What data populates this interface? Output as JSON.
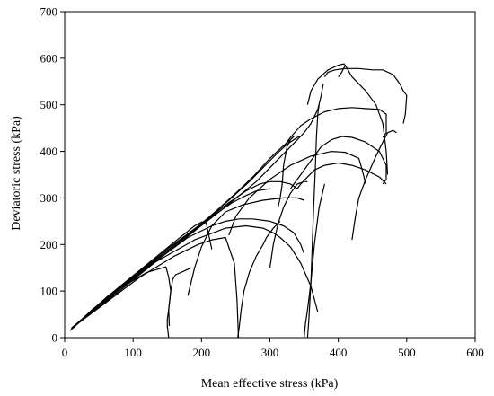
{
  "chart_data": {
    "type": "line",
    "title": "",
    "xlabel": "Mean effective stress (kPa)",
    "ylabel": "Deviatoric stress (kPa)",
    "xlim": [
      0,
      600
    ],
    "ylim": [
      0,
      700
    ],
    "xticks": [
      0,
      100,
      200,
      300,
      400,
      500,
      600
    ],
    "yticks": [
      0,
      100,
      200,
      300,
      400,
      500,
      600,
      700
    ],
    "grid": false,
    "legend": "none",
    "series": [
      {
        "x": [
          8,
          40,
          80,
          120,
          148,
          152,
          155,
          152,
          153
        ],
        "y": [
          15,
          60,
          105,
          140,
          152,
          130,
          100,
          60,
          25
        ]
      },
      {
        "x": [
          152,
          150,
          150,
          152,
          155,
          158,
          162,
          170,
          185
        ],
        "y": [
          0,
          25,
          40,
          60,
          100,
          125,
          135,
          140,
          150
        ]
      },
      {
        "x": [
          10,
          60,
          110,
          160,
          195,
          215,
          235,
          248,
          252,
          254
        ],
        "y": [
          20,
          75,
          130,
          175,
          200,
          210,
          215,
          160,
          80,
          0
        ]
      },
      {
        "x": [
          10,
          70,
          130,
          190,
          235,
          265,
          290,
          305,
          315,
          330,
          345,
          360,
          370
        ],
        "y": [
          20,
          95,
          160,
          210,
          235,
          240,
          235,
          225,
          215,
          195,
          160,
          110,
          55
        ]
      },
      {
        "x": [
          10,
          60,
          120,
          180,
          215,
          235,
          255,
          275,
          300,
          320,
          335,
          345,
          350
        ],
        "y": [
          20,
          80,
          150,
          215,
          240,
          250,
          255,
          255,
          250,
          240,
          225,
          200,
          180
        ]
      },
      {
        "x": [
          253,
          255,
          258,
          262,
          270,
          280,
          290,
          295,
          305,
          315
        ],
        "y": [
          0,
          20,
          60,
          100,
          140,
          175,
          200,
          215,
          235,
          250
        ]
      },
      {
        "x": [
          12,
          60,
          110,
          160,
          190,
          200,
          205,
          207,
          210,
          215
        ],
        "y": [
          20,
          85,
          145,
          205,
          240,
          248,
          250,
          245,
          225,
          190
        ]
      },
      {
        "x": [
          180,
          190,
          200,
          215,
          235,
          260,
          290,
          320,
          340,
          350
        ],
        "y": [
          90,
          150,
          195,
          240,
          270,
          285,
          295,
          300,
          300,
          295
        ]
      },
      {
        "x": [
          10,
          60,
          120,
          180,
          220,
          245,
          265,
          280,
          300
        ],
        "y": [
          20,
          85,
          155,
          220,
          265,
          290,
          305,
          315,
          320
        ]
      },
      {
        "x": [
          300,
          305,
          312,
          320,
          330,
          340,
          350,
          355
        ],
        "y": [
          150,
          200,
          245,
          280,
          310,
          330,
          335,
          335
        ]
      },
      {
        "x": [
          10,
          70,
          140,
          200,
          240,
          265,
          285,
          300,
          315,
          330,
          340
        ],
        "y": [
          20,
          95,
          175,
          245,
          290,
          315,
          330,
          335,
          335,
          330,
          320
        ]
      },
      {
        "x": [
          10,
          70,
          140,
          200,
          240,
          270,
          290,
          310,
          325,
          335,
          340,
          343
        ],
        "y": [
          20,
          95,
          175,
          245,
          295,
          335,
          365,
          395,
          415,
          425,
          430,
          432
        ]
      },
      {
        "x": [
          10,
          70,
          140,
          205,
          250,
          275,
          300,
          318,
          330,
          335,
          333,
          330,
          325,
          320,
          318,
          315,
          312
        ],
        "y": [
          20,
          95,
          180,
          250,
          310,
          345,
          385,
          410,
          425,
          432,
          430,
          425,
          410,
          370,
          330,
          300,
          280
        ]
      },
      {
        "x": [
          340,
          345,
          355,
          365,
          380,
          400,
          420,
          440,
          460,
          470
        ],
        "y": [
          320,
          330,
          345,
          360,
          370,
          375,
          370,
          360,
          345,
          330
        ]
      },
      {
        "x": [
          355,
          357,
          360,
          365,
          372,
          380
        ],
        "y": [
          0,
          40,
          120,
          200,
          280,
          330
        ]
      },
      {
        "x": [
          350,
          352,
          355,
          360,
          362,
          364,
          366,
          368,
          370,
          372
        ],
        "y": [
          0,
          30,
          60,
          120,
          200,
          280,
          350,
          430,
          480,
          500
        ]
      },
      {
        "x": [
          330,
          345,
          360,
          375,
          390,
          405,
          420,
          440,
          460,
          470,
          470,
          465
        ],
        "y": [
          320,
          350,
          380,
          410,
          425,
          432,
          430,
          420,
          400,
          370,
          340,
          330
        ]
      },
      {
        "x": [
          240,
          250,
          270,
          300,
          330,
          360,
          390,
          410,
          430,
          435,
          440
        ],
        "y": [
          220,
          260,
          300,
          340,
          370,
          390,
          400,
          398,
          385,
          360,
          330
        ]
      },
      {
        "x": [
          420,
          425,
          430,
          440,
          455,
          465,
          472,
          480,
          485
        ],
        "y": [
          210,
          260,
          300,
          340,
          390,
          420,
          440,
          445,
          440
        ]
      },
      {
        "x": [
          10,
          80,
          160,
          230,
          280,
          310,
          330,
          350,
          360,
          370,
          375,
          378
        ],
        "y": [
          20,
          100,
          195,
          275,
          335,
          380,
          410,
          440,
          460,
          490,
          520,
          545
        ]
      },
      {
        "x": [
          355,
          360,
          370,
          385,
          400,
          408,
          410,
          405,
          400
        ],
        "y": [
          500,
          530,
          555,
          575,
          585,
          588,
          585,
          570,
          560
        ]
      },
      {
        "x": [
          320,
          330,
          345,
          360,
          380,
          400,
          420,
          440,
          460,
          470,
          470,
          465
        ],
        "y": [
          410,
          430,
          455,
          470,
          485,
          492,
          494,
          492,
          490,
          480,
          440,
          430
        ]
      },
      {
        "x": [
          380,
          385,
          395,
          410,
          430,
          450,
          465,
          480,
          490,
          495,
          500,
          498,
          495
        ],
        "y": [
          560,
          570,
          575,
          578,
          578,
          575,
          575,
          565,
          545,
          530,
          520,
          480,
          460
        ]
      },
      {
        "x": [
          410,
          420,
          440,
          455,
          465,
          470,
          472
        ],
        "y": [
          585,
          560,
          530,
          500,
          460,
          400,
          350
        ]
      }
    ]
  }
}
